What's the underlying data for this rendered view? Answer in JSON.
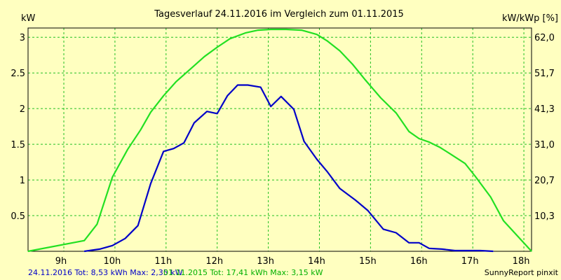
{
  "chart_data": {
    "type": "line",
    "title": "Tagesverlauf 24.11.2016 im Vergleich zum 01.11.2015",
    "y_left_label": "kW",
    "y_right_label": "kW/kWp [%]",
    "ylim": [
      0,
      3.13
    ],
    "xlim": [
      8.3,
      18.15
    ],
    "grid": true,
    "x_ticks": [
      {
        "value": 9,
        "label": "9h"
      },
      {
        "value": 10,
        "label": "10h"
      },
      {
        "value": 11,
        "label": "11h"
      },
      {
        "value": 12,
        "label": "12h"
      },
      {
        "value": 13,
        "label": "13h"
      },
      {
        "value": 14,
        "label": "14h"
      },
      {
        "value": 15,
        "label": "15h"
      },
      {
        "value": 16,
        "label": "16h"
      },
      {
        "value": 17,
        "label": "17h"
      },
      {
        "value": 18,
        "label": "18h"
      }
    ],
    "y_left_ticks": [
      {
        "value": 0.5,
        "label": "0.5"
      },
      {
        "value": 1,
        "label": "1"
      },
      {
        "value": 1.5,
        "label": "1.5"
      },
      {
        "value": 2,
        "label": "2"
      },
      {
        "value": 2.5,
        "label": "2.5"
      },
      {
        "value": 3,
        "label": "3"
      }
    ],
    "y_right_ticks": [
      {
        "value": 0.5,
        "label": "10,3"
      },
      {
        "value": 1,
        "label": "20,7"
      },
      {
        "value": 1.5,
        "label": "31,0"
      },
      {
        "value": 2,
        "label": "41,3"
      },
      {
        "value": 2.5,
        "label": "51,7"
      },
      {
        "value": 3,
        "label": "62,0"
      }
    ],
    "series": [
      {
        "name": "24.11.2016 Tot: 8,53 kWh Max: 2,35 kW",
        "color": "#0000c8",
        "x": [
          9.4,
          9.7,
          9.95,
          10.2,
          10.45,
          10.7,
          10.95,
          11.15,
          11.35,
          11.55,
          11.8,
          12.0,
          12.2,
          12.4,
          12.6,
          12.85,
          13.05,
          13.25,
          13.5,
          13.7,
          13.95,
          14.15,
          14.4,
          14.7,
          14.95,
          15.25,
          15.5,
          15.75,
          15.95,
          16.15,
          16.4,
          16.65,
          16.9,
          17.15,
          17.4
        ],
        "y": [
          0.0,
          0.03,
          0.08,
          0.18,
          0.36,
          0.95,
          1.4,
          1.44,
          1.52,
          1.8,
          1.96,
          1.93,
          2.18,
          2.33,
          2.33,
          2.3,
          2.03,
          2.17,
          1.99,
          1.54,
          1.29,
          1.12,
          0.88,
          0.72,
          0.57,
          0.31,
          0.26,
          0.12,
          0.12,
          0.04,
          0.03,
          0.01,
          0.01,
          0.01,
          0.0
        ]
      },
      {
        "name": "01.11.2015 Tot: 17,41 kWh Max: 3,15 kW",
        "color": "#22e022",
        "x": [
          8.3,
          9.4,
          9.65,
          9.95,
          10.25,
          10.5,
          10.7,
          10.95,
          11.2,
          11.5,
          11.75,
          12.0,
          12.25,
          12.55,
          12.8,
          13.05,
          13.35,
          13.65,
          13.95,
          14.15,
          14.4,
          14.65,
          14.9,
          15.2,
          15.5,
          15.75,
          15.95,
          16.15,
          16.35,
          16.55,
          16.85,
          17.05,
          17.35,
          17.6,
          18.15
        ],
        "y": [
          0.0,
          0.15,
          0.38,
          1.04,
          1.43,
          1.7,
          1.95,
          2.18,
          2.38,
          2.57,
          2.73,
          2.86,
          2.98,
          3.06,
          3.1,
          3.11,
          3.11,
          3.1,
          3.04,
          2.95,
          2.81,
          2.62,
          2.4,
          2.15,
          1.94,
          1.68,
          1.58,
          1.53,
          1.46,
          1.37,
          1.23,
          1.05,
          0.76,
          0.43,
          0.0
        ]
      }
    ],
    "footer": {
      "series1": "24.11.2016 Tot: 8,53 kWh Max: 2,35 kW",
      "series2": "01.11.2015 Tot: 17,41 kWh Max: 3,15 kW",
      "credit": "SunnyReport pinxit"
    }
  }
}
